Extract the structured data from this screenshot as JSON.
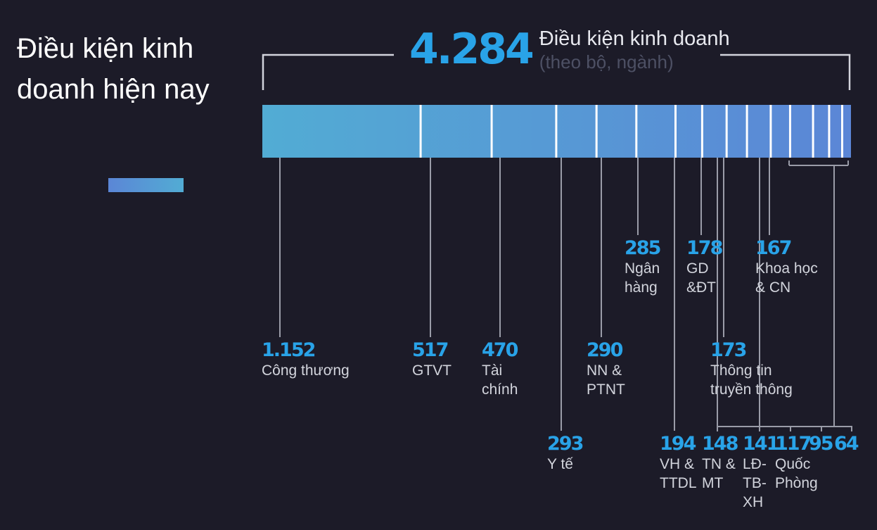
{
  "title": "Điều kiện kinh doanh hiện nay",
  "total": {
    "value": "4.284",
    "label": "Điều kiện kinh doanh",
    "sub": "(theo bộ, ngành)"
  },
  "chart_data": {
    "type": "bar",
    "stacked": true,
    "title": "Điều kiện kinh doanh hiện nay",
    "total": 4284,
    "categories": [
      "Công thương",
      "GTVT",
      "Tài chính",
      "Y tế",
      "NN & PTNT",
      "Ngân hàng",
      "VH & TTDL",
      "GD &ĐT",
      "TN & MT",
      "Thông tin truyền thông",
      "LĐ-TB-XH",
      "Khoa học & CN",
      "Quốc Phòng",
      "",
      ""
    ],
    "values": [
      1152,
      517,
      470,
      293,
      290,
      285,
      194,
      178,
      148,
      173,
      141,
      167,
      117,
      95,
      64
    ],
    "labels": [
      {
        "value": "1.152",
        "name": "Công thương"
      },
      {
        "value": "517",
        "name": "GTVT"
      },
      {
        "value": "470",
        "name": "Tài\nchính"
      },
      {
        "value": "293",
        "name": "Y tế"
      },
      {
        "value": "290",
        "name": "NN &\nPTNT"
      },
      {
        "value": "285",
        "name": "Ngân\nhàng"
      },
      {
        "value": "194",
        "name": "VH &\nTTDL"
      },
      {
        "value": "178",
        "name": "GD\n&ĐT"
      },
      {
        "value": "148",
        "name": "TN &\nMT"
      },
      {
        "value": "173",
        "name": "Thông tin\ntruyền thông"
      },
      {
        "value": "141",
        "name": "LĐ-\nTB-\nXH"
      },
      {
        "value": "167",
        "name": "Khoa học\n& CN"
      },
      {
        "value": "117",
        "name": "Quốc\nPhòng"
      },
      {
        "value": "95",
        "name": ""
      },
      {
        "value": "64",
        "name": ""
      }
    ],
    "colors": {
      "bar_start": "#52acd4",
      "bar_end": "#5b86d6",
      "value": "#29a3e8",
      "leader": "#9a9ca8"
    }
  }
}
